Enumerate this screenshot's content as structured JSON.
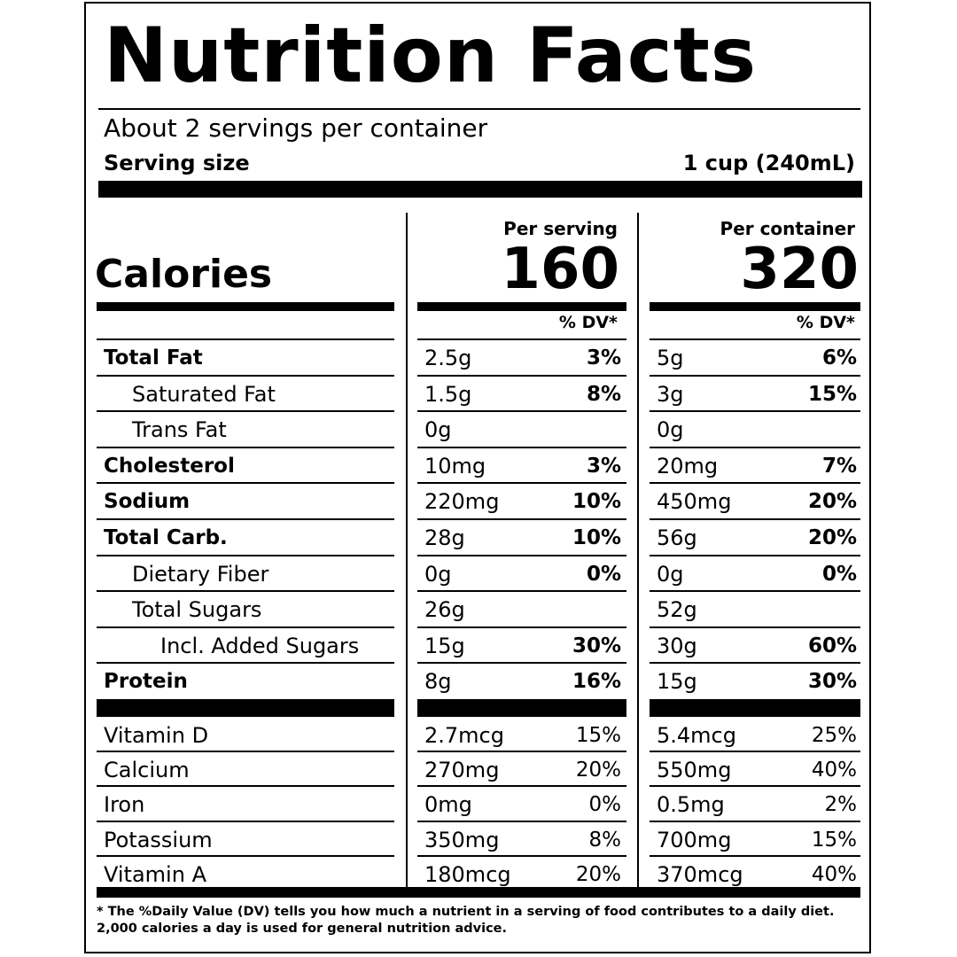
{
  "title": "Nutrition Facts",
  "servings_per_container": "About 2 servings per container",
  "serving_size_label": "Serving size",
  "serving_size_value": "1 cup (240mL)",
  "calories_label": "Calories",
  "columns": [
    {
      "heading": "Per serving",
      "calories": "160",
      "dv_heading": "% DV*"
    },
    {
      "heading": "Per container",
      "calories": "320",
      "dv_heading": "% DV*"
    }
  ],
  "nutrients": [
    {
      "name": "Total Fat",
      "bold": true,
      "indent": 0,
      "serving": {
        "amount": "2.5g",
        "dv": "3%"
      },
      "container": {
        "amount": "5g",
        "dv": "6%"
      }
    },
    {
      "name": "Saturated Fat",
      "bold": false,
      "indent": 1,
      "serving": {
        "amount": "1.5g",
        "dv": "8%"
      },
      "container": {
        "amount": "3g",
        "dv": "15%"
      }
    },
    {
      "name": "Trans Fat",
      "bold": false,
      "indent": 1,
      "serving": {
        "amount": "0g",
        "dv": ""
      },
      "container": {
        "amount": "0g",
        "dv": ""
      }
    },
    {
      "name": "Cholesterol",
      "bold": true,
      "indent": 0,
      "serving": {
        "amount": "10mg",
        "dv": "3%"
      },
      "container": {
        "amount": "20mg",
        "dv": "7%"
      }
    },
    {
      "name": "Sodium",
      "bold": true,
      "indent": 0,
      "serving": {
        "amount": "220mg",
        "dv": "10%"
      },
      "container": {
        "amount": "450mg",
        "dv": "20%"
      }
    },
    {
      "name": "Total Carb.",
      "bold": true,
      "indent": 0,
      "serving": {
        "amount": "28g",
        "dv": "10%"
      },
      "container": {
        "amount": "56g",
        "dv": "20%"
      }
    },
    {
      "name": "Dietary Fiber",
      "bold": false,
      "indent": 1,
      "serving": {
        "amount": "0g",
        "dv": "0%"
      },
      "container": {
        "amount": "0g",
        "dv": "0%"
      }
    },
    {
      "name": "Total Sugars",
      "bold": false,
      "indent": 1,
      "serving": {
        "amount": "26g",
        "dv": ""
      },
      "container": {
        "amount": "52g",
        "dv": ""
      }
    },
    {
      "name": "Incl. Added Sugars",
      "bold": false,
      "indent": 2,
      "serving": {
        "amount": "15g",
        "dv": "30%"
      },
      "container": {
        "amount": "30g",
        "dv": "60%"
      }
    },
    {
      "name": "Protein",
      "bold": true,
      "indent": 0,
      "serving": {
        "amount": "8g",
        "dv": "16%"
      },
      "container": {
        "amount": "15g",
        "dv": "30%"
      }
    }
  ],
  "vitamins": [
    {
      "name": "Vitamin D",
      "serving": {
        "amount": "2.7mcg",
        "dv": "15%"
      },
      "container": {
        "amount": "5.4mcg",
        "dv": "25%"
      }
    },
    {
      "name": "Calcium",
      "serving": {
        "amount": "270mg",
        "dv": "20%"
      },
      "container": {
        "amount": "550mg",
        "dv": "40%"
      }
    },
    {
      "name": "Iron",
      "serving": {
        "amount": "0mg",
        "dv": "0%"
      },
      "container": {
        "amount": "0.5mg",
        "dv": "2%"
      }
    },
    {
      "name": "Potassium",
      "serving": {
        "amount": "350mg",
        "dv": "8%"
      },
      "container": {
        "amount": "700mg",
        "dv": "15%"
      }
    },
    {
      "name": "Vitamin A",
      "serving": {
        "amount": "180mcg",
        "dv": "20%"
      },
      "container": {
        "amount": "370mcg",
        "dv": "40%"
      }
    }
  ],
  "footnote": "* The %Daily Value (DV) tells you how much a nutrient in a serving of food contributes to a daily diet. 2,000 calories a day is used for general nutrition advice."
}
